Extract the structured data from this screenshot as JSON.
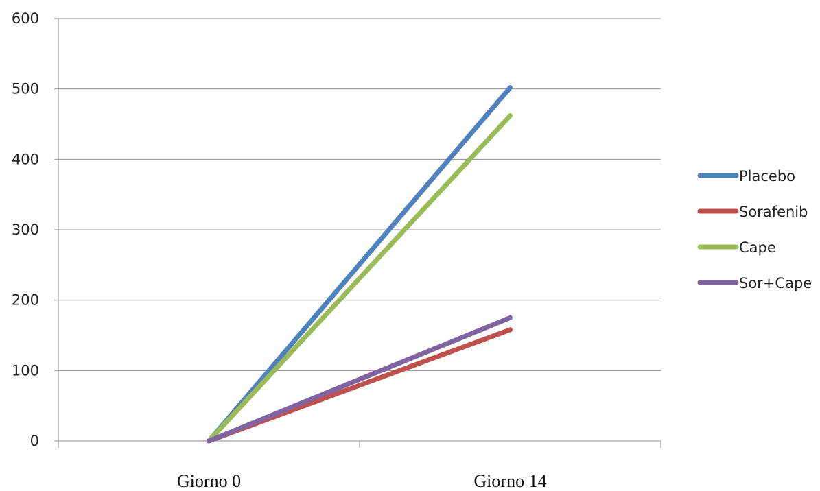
{
  "chart_data": {
    "type": "line",
    "title": "",
    "xlabel": "",
    "ylabel": "",
    "categories": [
      "Giorno 0",
      "Giorno 14"
    ],
    "ylim": [
      0,
      600
    ],
    "yticks": [
      "0",
      "100",
      "200",
      "300",
      "400",
      "500",
      "600"
    ],
    "grid": true,
    "legend_position": "right",
    "series": [
      {
        "name": "Placebo",
        "color": "#4F81BD",
        "values": [
          0,
          502
        ]
      },
      {
        "name": "Sorafenib",
        "color": "#C0504D",
        "values": [
          0,
          158
        ]
      },
      {
        "name": "Cape",
        "color": "#9BBB59",
        "values": [
          0,
          462
        ]
      },
      {
        "name": "Sor+Cape",
        "color": "#8064A2",
        "values": [
          0,
          175
        ]
      }
    ]
  }
}
